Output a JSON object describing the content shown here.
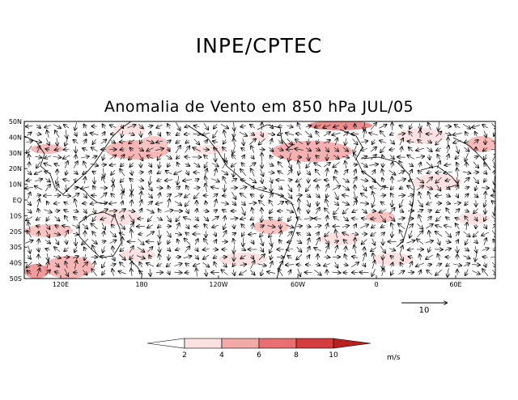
{
  "header": {
    "title": "INPE/CPTEC"
  },
  "map": {
    "title": "Anomalia de Vento em 850 hPa JUL/05",
    "lat_labels": [
      "50N",
      "40N",
      "30N",
      "20N",
      "10N",
      "EQ",
      "10S",
      "20S",
      "30S",
      "40S",
      "50S"
    ],
    "lon_labels": [
      "120E",
      "180",
      "120W",
      "60W",
      "0",
      "60E"
    ]
  },
  "reference_vector": {
    "label": "10"
  },
  "colorbar": {
    "ticks": [
      "2",
      "4",
      "6",
      "8",
      "10"
    ],
    "units": "m/s",
    "colors": [
      "#ffffff",
      "#fbe1e1",
      "#f4a9a9",
      "#e96f70",
      "#d33d3d",
      "#b81f1f"
    ]
  }
}
